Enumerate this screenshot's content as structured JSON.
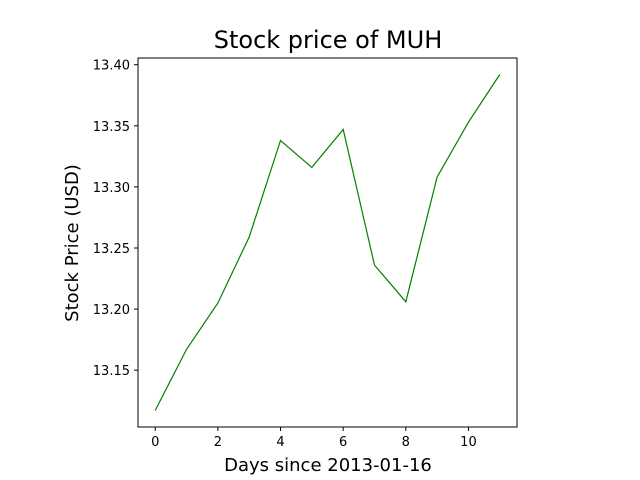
{
  "chart_data": {
    "type": "line",
    "title": "Stock price of MUH",
    "xlabel": "Days since 2013-01-16",
    "ylabel": "Stock Price (USD)",
    "x": [
      0,
      1,
      2,
      3,
      4,
      5,
      6,
      7,
      8,
      9,
      10,
      11
    ],
    "series": [
      {
        "values": [
          13.117,
          13.167,
          13.205,
          13.259,
          13.338,
          13.316,
          13.347,
          13.236,
          13.206,
          13.308,
          13.353,
          13.392
        ],
        "color": "#008000"
      }
    ],
    "xlim": [
      -0.55,
      11.55
    ],
    "ylim": [
      13.1035,
      13.4055
    ],
    "xticks": [
      0,
      2,
      4,
      6,
      8,
      10
    ],
    "xtick_labels": [
      "0",
      "2",
      "4",
      "6",
      "8",
      "10"
    ],
    "yticks": [
      13.15,
      13.2,
      13.25,
      13.3,
      13.35,
      13.4
    ],
    "ytick_labels": [
      "13.15",
      "13.20",
      "13.25",
      "13.30",
      "13.35",
      "13.40"
    ],
    "grid": false,
    "legend": "none"
  }
}
